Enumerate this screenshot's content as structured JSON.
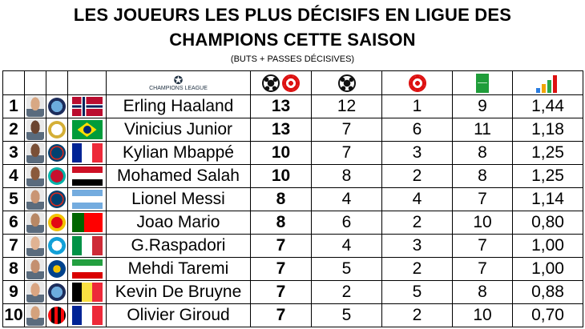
{
  "title_line1": "LES JOUEURS LES PLUS DÉCISIFS EN LIGUE DES",
  "title_line2": "CHAMPIONS CETTE SAISON",
  "subtitle": "(BUTS + PASSES DÉCISIVES)",
  "header": {
    "competition_logo_text": "CHAMPIONS LEAGUE",
    "icons": [
      "football-icon",
      "target-icon",
      "pitch-icon",
      "growth-chart-icon"
    ]
  },
  "colors": {
    "accent_red": "#dd1111",
    "pitch_green": "#1f9d3a"
  },
  "players": [
    {
      "rank": "1",
      "name": "Erling Haaland",
      "total": "13",
      "goals": "12",
      "assists": "1",
      "matches": "9",
      "ratio": "1,44",
      "club": "Manchester City",
      "flag": "Norway"
    },
    {
      "rank": "2",
      "name": "Vinicius Junior",
      "total": "13",
      "goals": "7",
      "assists": "6",
      "matches": "11",
      "ratio": "1,18",
      "club": "Real Madrid",
      "flag": "Brazil"
    },
    {
      "rank": "3",
      "name": "Kylian Mbappé",
      "total": "10",
      "goals": "7",
      "assists": "3",
      "matches": "8",
      "ratio": "1,25",
      "club": "Paris Saint-Germain",
      "flag": "France"
    },
    {
      "rank": "4",
      "name": "Mohamed Salah",
      "total": "10",
      "goals": "8",
      "assists": "2",
      "matches": "8",
      "ratio": "1,25",
      "club": "Liverpool",
      "flag": "Egypt"
    },
    {
      "rank": "5",
      "name": "Lionel Messi",
      "total": "8",
      "goals": "4",
      "assists": "4",
      "matches": "7",
      "ratio": "1,14",
      "club": "Paris Saint-Germain",
      "flag": "Argentina"
    },
    {
      "rank": "6",
      "name": "Joao Mario",
      "total": "8",
      "goals": "6",
      "assists": "2",
      "matches": "10",
      "ratio": "0,80",
      "club": "Benfica",
      "flag": "Portugal"
    },
    {
      "rank": "7",
      "name": "G.Raspadori",
      "total": "7",
      "goals": "4",
      "assists": "3",
      "matches": "7",
      "ratio": "1,00",
      "club": "Napoli",
      "flag": "Italy"
    },
    {
      "rank": "8",
      "name": "Mehdi Taremi",
      "total": "7",
      "goals": "5",
      "assists": "2",
      "matches": "7",
      "ratio": "1,00",
      "club": "FC Porto",
      "flag": "Iran"
    },
    {
      "rank": "9",
      "name": "Kevin De Bruyne",
      "total": "7",
      "goals": "2",
      "assists": "5",
      "matches": "8",
      "ratio": "0,88",
      "club": "Manchester City",
      "flag": "Belgium"
    },
    {
      "rank": "10",
      "name": "Olivier Giroud",
      "total": "7",
      "goals": "5",
      "assists": "2",
      "matches": "10",
      "ratio": "0,70",
      "club": "AC Milan",
      "flag": "France"
    }
  ]
}
